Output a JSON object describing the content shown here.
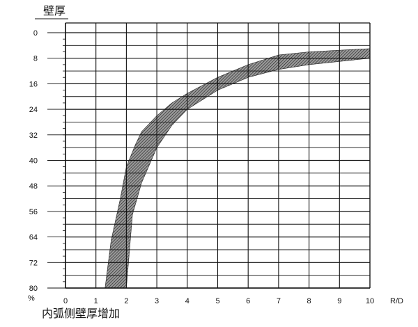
{
  "chart_data": {
    "type": "area",
    "ylabel": "壁厚",
    "y_unit": "%",
    "xlabel": "R/D",
    "subtitle": "内弧侧壁厚增加",
    "x_range": [
      0,
      10
    ],
    "y_range": [
      0,
      80
    ],
    "y_inverted": true,
    "grid": true,
    "x_ticks": [
      "0",
      "1",
      "2",
      "3",
      "4",
      "5",
      "6",
      "7",
      "8",
      "9",
      "10"
    ],
    "y_ticks": [
      "0",
      "8",
      "16",
      "24",
      "32",
      "40",
      "48",
      "56",
      "64",
      "72",
      "80"
    ],
    "band": {
      "upper_boundary": {
        "x": [
          2.0,
          2.2,
          2.5,
          3.0,
          3.5,
          4.0,
          5.0,
          6.0,
          7.0,
          8.0,
          9.0,
          10.0
        ],
        "y": [
          80,
          57,
          47,
          36,
          29,
          24,
          18,
          14,
          11.5,
          10,
          9,
          8
        ]
      },
      "lower_boundary": {
        "x": [
          1.3,
          1.5,
          1.8,
          2.0,
          2.3,
          2.5,
          3.0,
          3.5,
          4.0,
          5.0,
          6.0,
          7.0,
          8.0,
          9.0,
          10.0
        ],
        "y": [
          80,
          65,
          52,
          42,
          35,
          31,
          26,
          22,
          19,
          14,
          10,
          7,
          6,
          5.5,
          5
        ]
      }
    }
  }
}
